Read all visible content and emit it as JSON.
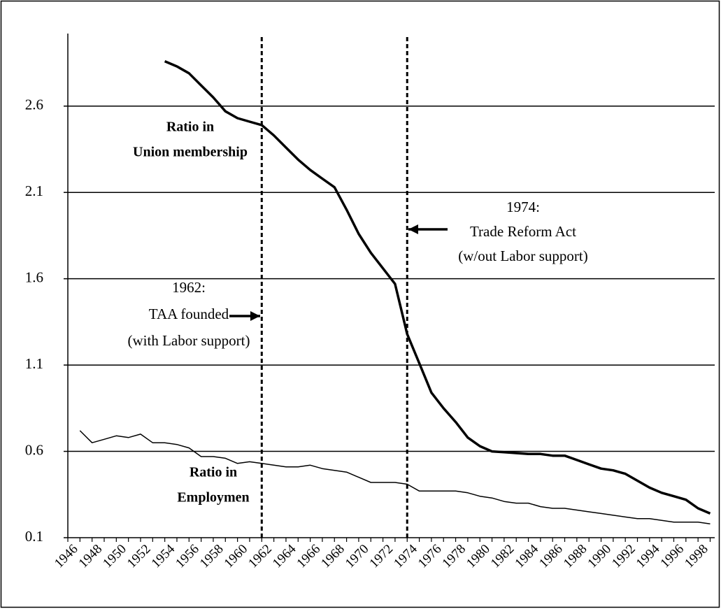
{
  "chart_data": {
    "type": "line",
    "categories": [
      "1946",
      null,
      "1948",
      null,
      "1950",
      null,
      "1952",
      null,
      "1954",
      null,
      "1956",
      null,
      "1958",
      null,
      "1960",
      null,
      "1962",
      null,
      "1964",
      null,
      "1966",
      null,
      "1968",
      null,
      "1970",
      null,
      "1972",
      null,
      "1974",
      null,
      "1976",
      null,
      "1978",
      null,
      "1980",
      null,
      "1982",
      null,
      "1984",
      null,
      "1986",
      null,
      "1988",
      null,
      "1990",
      null,
      "1992",
      null,
      "1994",
      null,
      "1996",
      null,
      "1998",
      null
    ],
    "series": [
      {
        "color": "#000000",
        "values": [
          null,
          null,
          null,
          null,
          null,
          null,
          null,
          null,
          2.86,
          2.83,
          2.79,
          2.72,
          2.65,
          2.57,
          2.53,
          2.51,
          2.49,
          2.43,
          2.36,
          2.29,
          2.23,
          2.18,
          2.13,
          2.0,
          1.86,
          1.75,
          1.66,
          1.57,
          1.28,
          1.11,
          0.94,
          0.85,
          0.77,
          0.68,
          0.63,
          0.6,
          0.595,
          0.59,
          0.585,
          0.585,
          0.575,
          0.575,
          0.55,
          0.525,
          0.5,
          0.49,
          0.47,
          0.43,
          0.39,
          0.36,
          0.34,
          0.32,
          0.27,
          0.24
        ]
      },
      {
        "color": "#000000",
        "values": [
          null,
          0.72,
          0.65,
          0.67,
          0.69,
          0.68,
          0.7,
          0.65,
          0.65,
          0.64,
          0.62,
          0.57,
          0.57,
          0.56,
          0.53,
          0.54,
          0.53,
          0.52,
          0.51,
          0.51,
          0.52,
          0.5,
          0.49,
          0.48,
          0.45,
          0.42,
          0.42,
          0.42,
          0.41,
          0.37,
          0.37,
          0.37,
          0.37,
          0.36,
          0.34,
          0.33,
          0.31,
          0.3,
          0.3,
          0.28,
          0.27,
          0.27,
          0.26,
          0.25,
          0.24,
          0.23,
          0.22,
          0.21,
          0.21,
          0.2,
          0.19,
          0.19,
          0.19,
          0.18
        ]
      }
    ],
    "ylim": [
      0.1,
      3.0
    ],
    "yticks": [
      0.1,
      0.6,
      1.1,
      1.6,
      2.1,
      2.6
    ],
    "grid": true,
    "event_lines": [
      1962,
      1974
    ],
    "annotations": [
      {
        "lines": [
          "Ratio in",
          "Union membership"
        ]
      },
      {
        "lines": [
          "Ratio in",
          "Employmen"
        ]
      },
      {
        "lines": [
          "1962:",
          "TAA founded",
          "(with Labor support)"
        ]
      },
      {
        "lines": [
          "1974:",
          "Trade Reform Act",
          "(w/out Labor support)"
        ]
      }
    ]
  }
}
